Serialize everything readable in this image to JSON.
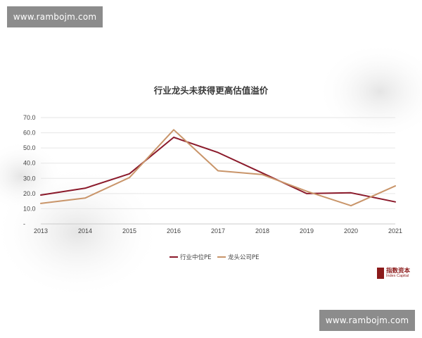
{
  "watermark_top": "www.rambojm.com",
  "watermark_bottom": "www.rambojm.com",
  "logo": {
    "cn": "指数资本",
    "en": "Index Capital"
  },
  "chart_data": {
    "type": "line",
    "title": "行业龙头未获得更高估值溢价",
    "x": [
      "2013",
      "2014",
      "2015",
      "2016",
      "2017",
      "2018",
      "2019",
      "2020",
      "2021"
    ],
    "ylim": [
      0,
      70
    ],
    "yticks": [
      "-",
      "10.0",
      "20.0",
      "30.0",
      "40.0",
      "50.0",
      "60.0",
      "70.0"
    ],
    "grid": true,
    "legend_position": "bottom",
    "series": [
      {
        "name": "行业中位PE",
        "color": "#8b1a2b",
        "values": [
          19,
          23.5,
          33,
          57,
          47,
          33.5,
          20,
          20.5,
          14.5
        ]
      },
      {
        "name": "龙头公司PE",
        "color": "#c9956a",
        "values": [
          13.5,
          17,
          30.5,
          62,
          35,
          32.5,
          21.5,
          12,
          25
        ]
      }
    ]
  }
}
